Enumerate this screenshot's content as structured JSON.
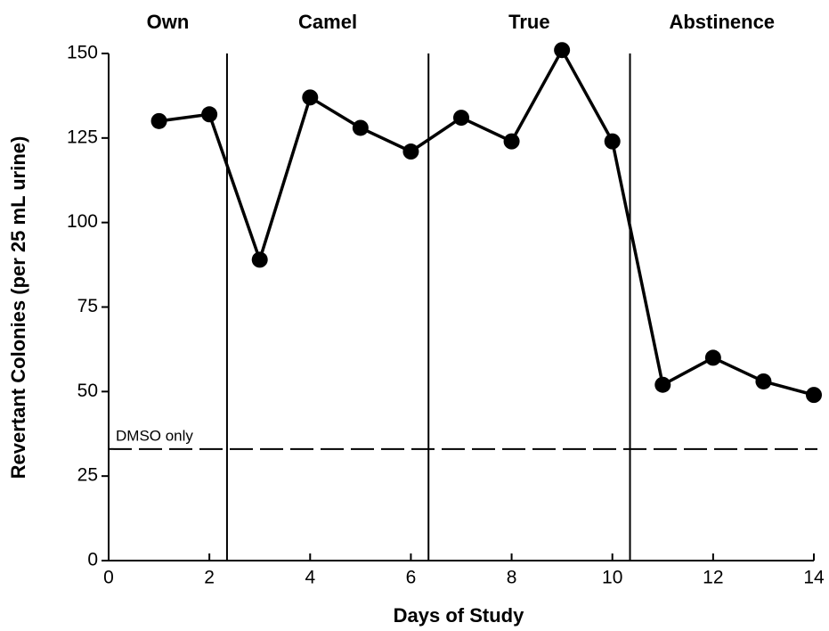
{
  "chart_data": {
    "type": "line",
    "xlabel": "Days of Study",
    "ylabel": "Revertant Colonies (per 25 mL urine)",
    "x": [
      1,
      2,
      3,
      4,
      5,
      6,
      7,
      8,
      9,
      10,
      11,
      12,
      13,
      14
    ],
    "values": [
      130,
      132,
      89,
      137,
      128,
      121,
      131,
      124,
      151,
      124,
      52,
      60,
      53,
      49
    ],
    "color": "#000000",
    "xlim": [
      0,
      14
    ],
    "xticks": [
      0,
      2,
      4,
      6,
      8,
      10,
      12,
      14
    ],
    "ylim": [
      0,
      150
    ],
    "yticks": [
      0,
      25,
      50,
      75,
      100,
      125,
      150
    ],
    "grid": false,
    "regions": [
      "Own",
      "Camel",
      "True",
      "Abstinence"
    ],
    "dividers": [
      2.35,
      6.35,
      10.35
    ],
    "reference_line": {
      "value": 33,
      "label": "DMSO only"
    }
  }
}
